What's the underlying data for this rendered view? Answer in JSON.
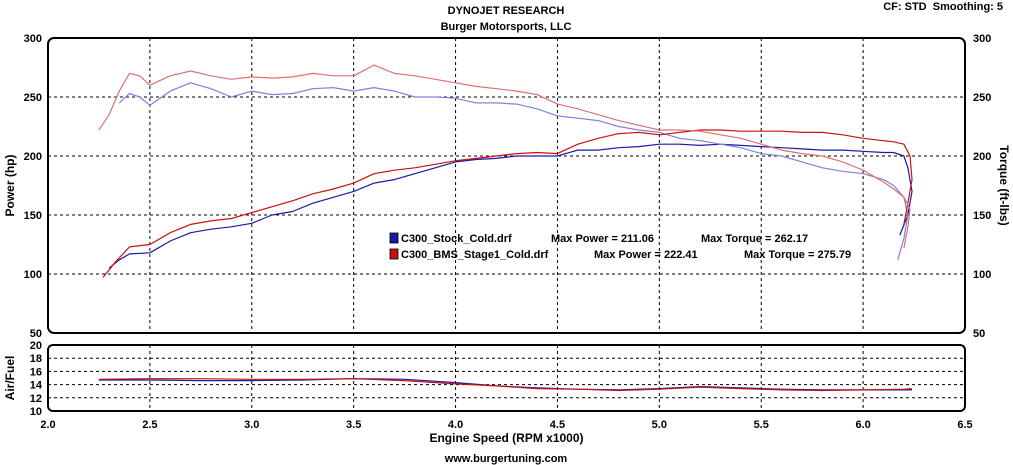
{
  "header": {
    "title": "DYNOJET RESEARCH",
    "subtitle": "Burger Motorsports, LLC",
    "settings": "CF: STD  Smoothing: 5"
  },
  "footer": {
    "website": "www.burgertuning.com"
  },
  "chart_data": [
    {
      "type": "line",
      "title": "DYNOJET RESEARCH",
      "subtitle": "Burger Motorsports, LLC",
      "xlabel": "Engine Speed (RPM x1000)",
      "ylabel": "Power (hp)",
      "y2label": "Torque (ft-lbs)",
      "xlim": [
        2.0,
        6.5
      ],
      "ylim": [
        50,
        300
      ],
      "y2lim": [
        50,
        300
      ],
      "x_ticks": [
        "2.0",
        "2.5",
        "3.0",
        "3.5",
        "4.0",
        "4.5",
        "5.0",
        "5.5",
        "6.0",
        "6.5"
      ],
      "y_ticks": [
        "50",
        "100",
        "150",
        "200",
        "250",
        "300"
      ],
      "y2_ticks": [
        "50",
        "100",
        "150",
        "200",
        "250",
        "300"
      ],
      "grid": true,
      "legend_position": "center",
      "legend": [
        {
          "run": "C300_Stock_Cold.drf",
          "max_power_label": "Max Power =",
          "max_power": "211.06",
          "max_torque_label": "Max Torque =",
          "max_torque": "262.17",
          "color": "#1a1aa0"
        },
        {
          "run": "C300_BMS_Stage1_Cold.drf",
          "max_power_label": "Max Power =",
          "max_power": "222.41",
          "max_torque_label": "Max Torque =",
          "max_torque": "275.79",
          "color": "#cc1010"
        }
      ],
      "series": [
        {
          "run": "C300_Stock_Cold.drf",
          "measure": "power",
          "color": "#1a1aa0",
          "x": [
            2.3,
            2.35,
            2.4,
            2.5,
            2.6,
            2.7,
            2.8,
            2.9,
            3.0,
            3.1,
            3.2,
            3.3,
            3.4,
            3.5,
            3.6,
            3.7,
            3.8,
            3.9,
            4.0,
            4.1,
            4.2,
            4.3,
            4.4,
            4.5,
            4.6,
            4.7,
            4.8,
            4.9,
            5.0,
            5.1,
            5.2,
            5.3,
            5.4,
            5.5,
            5.6,
            5.7,
            5.8,
            5.9,
            6.0,
            6.1,
            6.15,
            6.2,
            6.22,
            6.24,
            6.22,
            6.18
          ],
          "y": [
            105,
            112,
            117,
            118,
            128,
            135,
            138,
            140,
            143,
            150,
            153,
            160,
            165,
            170,
            177,
            180,
            185,
            190,
            195,
            197,
            198,
            200,
            200,
            200,
            205,
            205,
            207,
            208,
            210,
            210,
            209,
            210,
            209,
            208,
            207,
            206,
            205,
            205,
            204,
            203,
            203,
            200,
            190,
            170,
            150,
            133
          ]
        },
        {
          "run": "C300_Stock_Cold.drf",
          "measure": "torque",
          "color": "#8080dd",
          "x": [
            2.35,
            2.4,
            2.45,
            2.5,
            2.6,
            2.7,
            2.8,
            2.9,
            3.0,
            3.1,
            3.2,
            3.3,
            3.4,
            3.5,
            3.6,
            3.7,
            3.8,
            3.9,
            4.0,
            4.1,
            4.2,
            4.3,
            4.4,
            4.5,
            4.6,
            4.7,
            4.8,
            4.9,
            5.0,
            5.1,
            5.2,
            5.3,
            5.4,
            5.5,
            5.6,
            5.7,
            5.8,
            5.9,
            6.0,
            6.1,
            6.15,
            6.2,
            6.22,
            6.2,
            6.17
          ],
          "y": [
            245,
            253,
            250,
            243,
            255,
            262,
            257,
            250,
            255,
            252,
            253,
            257,
            258,
            255,
            258,
            255,
            250,
            250,
            249,
            245,
            245,
            244,
            240,
            234,
            232,
            230,
            225,
            222,
            220,
            215,
            213,
            210,
            207,
            202,
            200,
            195,
            190,
            187,
            185,
            180,
            175,
            165,
            150,
            130,
            112
          ]
        },
        {
          "run": "C300_BMS_Stage1_Cold.drf",
          "measure": "power",
          "color": "#cc1010",
          "x": [
            2.27,
            2.33,
            2.4,
            2.5,
            2.6,
            2.7,
            2.8,
            2.9,
            3.0,
            3.1,
            3.2,
            3.3,
            3.4,
            3.5,
            3.6,
            3.7,
            3.8,
            3.9,
            4.0,
            4.1,
            4.2,
            4.3,
            4.4,
            4.5,
            4.6,
            4.7,
            4.8,
            4.9,
            5.0,
            5.1,
            5.2,
            5.3,
            5.4,
            5.5,
            5.6,
            5.7,
            5.8,
            5.9,
            6.0,
            6.1,
            6.15,
            6.2,
            6.23,
            6.24,
            6.22,
            6.2
          ],
          "y": [
            97,
            110,
            123,
            125,
            135,
            142,
            145,
            147,
            152,
            157,
            162,
            168,
            172,
            177,
            185,
            188,
            190,
            193,
            196,
            198,
            200,
            202,
            203,
            202,
            210,
            215,
            219,
            220,
            218,
            220,
            222,
            222,
            221,
            221,
            221,
            220,
            220,
            218,
            215,
            213,
            212,
            210,
            200,
            180,
            160,
            142
          ]
        },
        {
          "run": "C300_BMS_Stage1_Cold.drf",
          "measure": "torque",
          "color": "#e07070",
          "x": [
            2.25,
            2.3,
            2.35,
            2.4,
            2.45,
            2.5,
            2.6,
            2.7,
            2.8,
            2.9,
            3.0,
            3.1,
            3.2,
            3.3,
            3.4,
            3.5,
            3.6,
            3.7,
            3.8,
            3.9,
            4.0,
            4.1,
            4.2,
            4.3,
            4.4,
            4.5,
            4.6,
            4.7,
            4.8,
            4.9,
            5.0,
            5.1,
            5.2,
            5.3,
            5.4,
            5.5,
            5.6,
            5.7,
            5.8,
            5.9,
            6.0,
            6.1,
            6.15,
            6.2,
            6.23,
            6.22,
            6.2
          ],
          "y": [
            222,
            235,
            255,
            270,
            268,
            260,
            268,
            272,
            268,
            265,
            267,
            266,
            267,
            270,
            268,
            268,
            277,
            270,
            268,
            265,
            262,
            259,
            257,
            255,
            252,
            244,
            240,
            235,
            230,
            226,
            222,
            222,
            221,
            218,
            215,
            210,
            205,
            202,
            200,
            195,
            188,
            178,
            172,
            165,
            155,
            140,
            122
          ]
        }
      ]
    },
    {
      "type": "line",
      "ylabel": "Air/Fuel",
      "xlim": [
        2.0,
        6.5
      ],
      "ylim": [
        10,
        20
      ],
      "y_ticks": [
        "10",
        "12",
        "14",
        "16",
        "18",
        "20"
      ],
      "grid": true,
      "series": [
        {
          "run": "C300_Stock_Cold.drf",
          "measure": "air_fuel",
          "color": "#1a1aa0",
          "x": [
            2.25,
            2.5,
            2.75,
            3.0,
            3.25,
            3.5,
            3.75,
            4.0,
            4.2,
            4.4,
            4.6,
            4.8,
            5.0,
            5.2,
            5.4,
            5.6,
            5.8,
            6.0,
            6.2,
            6.24
          ],
          "y": [
            14.7,
            14.7,
            14.6,
            14.6,
            14.7,
            14.9,
            14.8,
            14.3,
            13.8,
            13.5,
            13.3,
            13.2,
            13.4,
            13.7,
            13.5,
            13.3,
            13.2,
            13.2,
            13.2,
            13.2
          ]
        },
        {
          "run": "C300_BMS_Stage1_Cold.drf",
          "measure": "air_fuel",
          "color": "#cc1010",
          "x": [
            2.25,
            2.5,
            2.75,
            3.0,
            3.25,
            3.5,
            3.75,
            4.0,
            4.2,
            4.4,
            4.6,
            4.8,
            5.0,
            5.2,
            5.4,
            5.6,
            5.8,
            6.0,
            6.2,
            6.24
          ],
          "y": [
            14.8,
            14.9,
            14.9,
            14.8,
            14.8,
            14.9,
            14.6,
            14.1,
            13.8,
            13.4,
            13.3,
            13.1,
            13.3,
            13.6,
            13.4,
            13.2,
            13.1,
            13.2,
            13.3,
            13.4
          ]
        }
      ]
    }
  ]
}
